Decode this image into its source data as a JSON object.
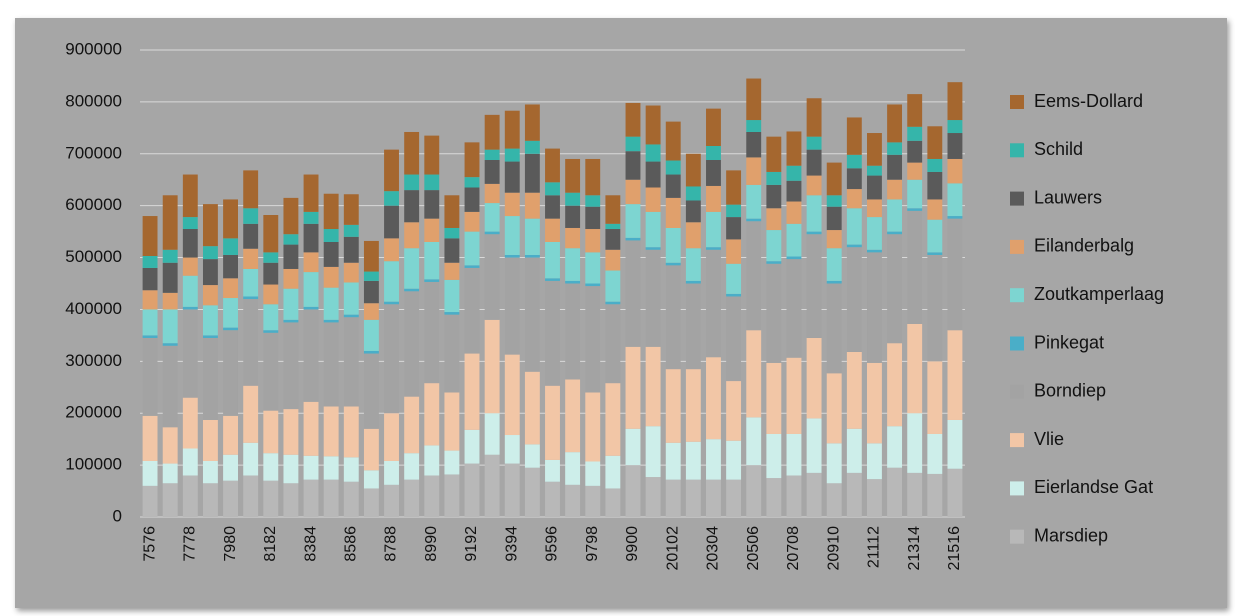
{
  "chart_data": {
    "type": "stacked_bar",
    "categories": [
      "7576",
      null,
      "7778",
      null,
      "7980",
      null,
      "8182",
      null,
      "8384",
      null,
      "8586",
      null,
      "8788",
      null,
      "8990",
      null,
      "9192",
      null,
      "9394",
      null,
      "9596",
      null,
      "9798",
      null,
      "9900",
      null,
      "20102",
      null,
      "20304",
      null,
      "20506",
      null,
      "20708",
      null,
      "20910",
      null,
      "21112",
      null,
      "21314",
      null,
      "21516"
    ],
    "ylim": [
      0,
      900000
    ],
    "yticks": [
      0,
      100000,
      200000,
      300000,
      400000,
      500000,
      600000,
      700000,
      800000,
      900000
    ],
    "grid": true,
    "legend": "right",
    "series": [
      {
        "name": "Marsdiep",
        "color": "#b8b8b8",
        "values": [
          60000,
          65000,
          80000,
          65000,
          70000,
          80000,
          70000,
          65000,
          72000,
          72000,
          68000,
          55000,
          62000,
          72000,
          80000,
          82000,
          103000,
          120000,
          103000,
          95000,
          68000,
          62000,
          60000,
          55000,
          100000,
          77000,
          72000,
          72000,
          72000,
          72000,
          100000,
          75000,
          80000,
          85000,
          65000,
          85000,
          73000,
          95000,
          85000,
          83000,
          93000
        ]
      },
      {
        "name": "Eierlandse Gat",
        "color": "#cdeeea",
        "values": [
          48000,
          38000,
          52000,
          43000,
          50000,
          63000,
          53000,
          55000,
          46000,
          45000,
          47000,
          35000,
          46000,
          51000,
          58000,
          46000,
          65000,
          80000,
          55000,
          45000,
          42000,
          63000,
          47000,
          63000,
          70000,
          98000,
          71000,
          73000,
          78000,
          75000,
          92000,
          85000,
          80000,
          105000,
          77000,
          85000,
          69000,
          80000,
          115000,
          77000,
          94000
        ]
      },
      {
        "name": "Vlie",
        "color": "#f2c6a6",
        "values": [
          87000,
          70000,
          98000,
          79000,
          75000,
          110000,
          82000,
          88000,
          104000,
          96000,
          98000,
          80000,
          92000,
          109000,
          120000,
          112000,
          147000,
          180000,
          155000,
          140000,
          143000,
          140000,
          133000,
          140000,
          158000,
          153000,
          142000,
          140000,
          158000,
          115000,
          168000,
          137000,
          147000,
          155000,
          135000,
          148000,
          155000,
          160000,
          172000,
          140000,
          173000
        ]
      },
      {
        "name": "Borndiep",
        "color": "#a3a3a3",
        "values": [
          150000,
          157000,
          170000,
          158000,
          165000,
          167000,
          150000,
          167000,
          178000,
          162000,
          172000,
          145000,
          210000,
          203000,
          195000,
          150000,
          165000,
          165000,
          187000,
          220000,
          202000,
          185000,
          205000,
          152000,
          205000,
          187000,
          200000,
          165000,
          207000,
          163000,
          210000,
          191000,
          190000,
          200000,
          173000,
          202000,
          213000,
          210000,
          218000,
          205000,
          215000
        ]
      },
      {
        "name": "Pinkegat",
        "color": "#4aaec8",
        "values": [
          5000,
          5000,
          5000,
          5000,
          5000,
          5000,
          5000,
          5000,
          5000,
          5000,
          5000,
          5000,
          5000,
          5000,
          5000,
          5000,
          5000,
          5000,
          5000,
          5000,
          5000,
          5000,
          5000,
          5000,
          5000,
          5000,
          5000,
          5000,
          5000,
          5000,
          5000,
          5000,
          5000,
          5000,
          5000,
          5000,
          5000,
          5000,
          5000,
          5000,
          5000
        ]
      },
      {
        "name": "Zoutkamperlaag",
        "color": "#7dd5d1",
        "values": [
          50000,
          65000,
          60000,
          58000,
          57000,
          53000,
          50000,
          60000,
          67000,
          62000,
          62000,
          60000,
          78000,
          78000,
          72000,
          62000,
          65000,
          55000,
          75000,
          70000,
          70000,
          63000,
          60000,
          60000,
          65000,
          68000,
          67000,
          63000,
          68000,
          58000,
          65000,
          60000,
          63000,
          70000,
          63000,
          70000,
          63000,
          62000,
          55000,
          63000,
          63000
        ]
      },
      {
        "name": "Eilanderbalg",
        "color": "#e0a06c",
        "values": [
          37000,
          32000,
          35000,
          39000,
          38000,
          39000,
          38000,
          38000,
          38000,
          40000,
          38000,
          32000,
          44000,
          50000,
          45000,
          33000,
          38000,
          37000,
          45000,
          50000,
          45000,
          39000,
          45000,
          40000,
          47000,
          47000,
          58000,
          50000,
          50000,
          47000,
          53000,
          42000,
          43000,
          38000,
          35000,
          37000,
          34000,
          38000,
          33000,
          39000,
          47000
        ]
      },
      {
        "name": "Lauwers",
        "color": "#5a5a5a",
        "values": [
          43000,
          58000,
          55000,
          50000,
          45000,
          48000,
          42000,
          47000,
          55000,
          48000,
          50000,
          43000,
          63000,
          62000,
          55000,
          47000,
          47000,
          46000,
          60000,
          75000,
          45000,
          43000,
          43000,
          40000,
          55000,
          50000,
          45000,
          42000,
          50000,
          43000,
          49000,
          45000,
          40000,
          50000,
          45000,
          40000,
          46000,
          48000,
          42000,
          53000,
          50000
        ]
      },
      {
        "name": "Schild",
        "color": "#35b5aa",
        "values": [
          23000,
          25000,
          23000,
          25000,
          32000,
          30000,
          20000,
          20000,
          23000,
          25000,
          23000,
          18000,
          28000,
          30000,
          30000,
          20000,
          20000,
          20000,
          25000,
          25000,
          25000,
          25000,
          22000,
          10000,
          28000,
          33000,
          27000,
          27000,
          27000,
          24000,
          23000,
          25000,
          29000,
          25000,
          22000,
          26000,
          19000,
          24000,
          27000,
          25000,
          25000
        ]
      },
      {
        "name": "Eems-Dollard",
        "color": "#a5672f",
        "values": [
          77000,
          105000,
          82000,
          81000,
          75000,
          73000,
          72000,
          70000,
          72000,
          68000,
          59000,
          59000,
          80000,
          82000,
          75000,
          63000,
          67000,
          67000,
          73000,
          70000,
          65000,
          65000,
          70000,
          55000,
          65000,
          75000,
          75000,
          63000,
          72000,
          66000,
          80000,
          68000,
          66000,
          74000,
          63000,
          72000,
          63000,
          73000,
          63000,
          63000,
          73000
        ]
      }
    ]
  }
}
